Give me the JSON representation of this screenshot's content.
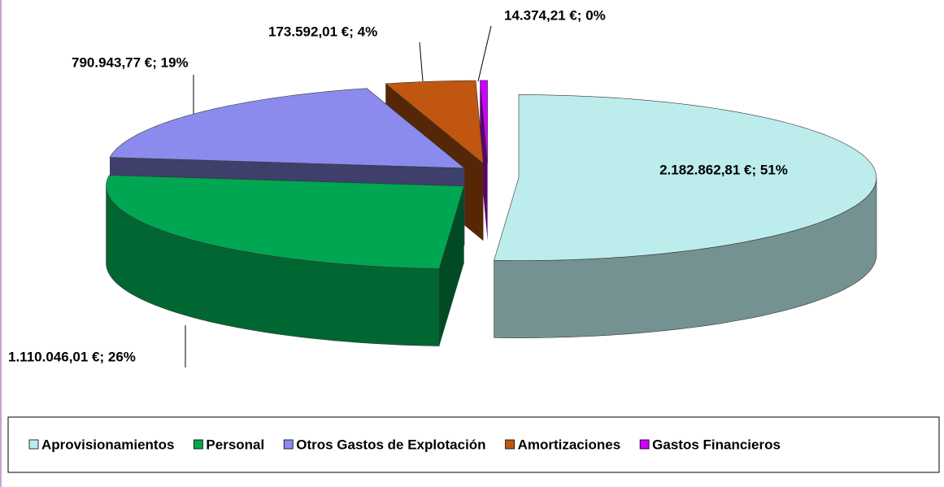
{
  "chart_data": {
    "type": "pie3d",
    "categories": [
      "Aprovisionamientos",
      "Personal",
      "Otros Gastos de Explotación",
      "Amortizaciones",
      "Gastos Financieros"
    ],
    "values": [
      2182862.81,
      1110046.01,
      790943.77,
      173592.01,
      14374.21
    ],
    "value_labels": [
      "2.182.862,81 €; 51%",
      "1.110.046,01 €; 26%",
      "790.943,77 €; 19%",
      "173.592,01 €; 4%",
      "14.374,21 €; 0%"
    ],
    "colors": [
      "#bdecec",
      "#00a651",
      "#8b8bee",
      "#c0560f",
      "#cc00ff"
    ],
    "legend": "bottom"
  }
}
